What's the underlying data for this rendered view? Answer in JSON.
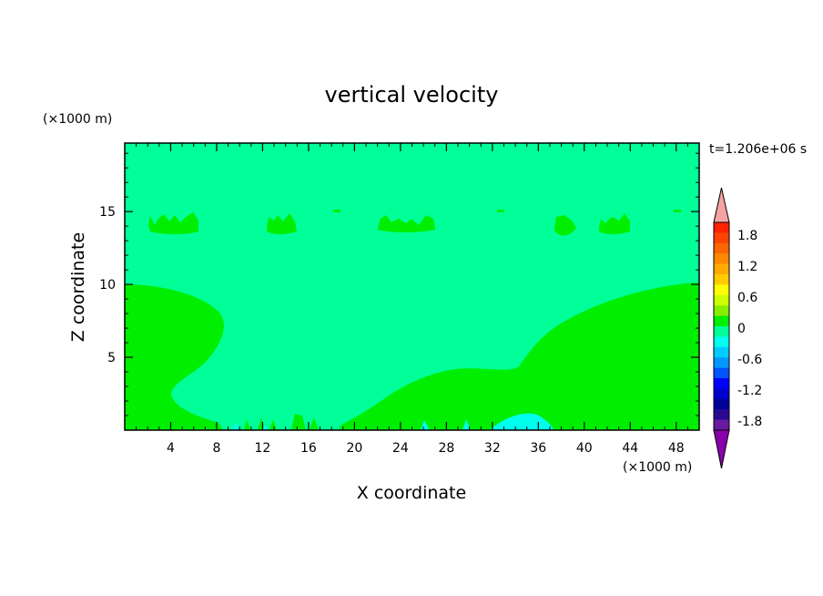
{
  "chart_data": {
    "type": "heatmap",
    "title": "vertical velocity",
    "xlabel": "X coordinate",
    "ylabel": "Z coordinate",
    "x_unit": "(×1000 m)",
    "y_unit": "(×1000 m)",
    "time_label": "t=1.206e+06 s",
    "xlim": [
      0,
      50
    ],
    "ylim": [
      0,
      19.7
    ],
    "x_ticks": [
      4,
      8,
      12,
      16,
      20,
      24,
      28,
      32,
      36,
      40,
      44,
      48
    ],
    "y_ticks": [
      5,
      10,
      15
    ],
    "background_level": "-0.3..0 (green-cyan)",
    "colorbar": {
      "ticks": [
        "1.8",
        "1.2",
        "0.6",
        "0",
        "-0.6",
        "-1.2",
        "-1.8"
      ],
      "levels": [
        {
          "color": "#f4a3a3"
        },
        {
          "color": "#ff2200"
        },
        {
          "color": "#ff4400"
        },
        {
          "color": "#ff6600"
        },
        {
          "color": "#ff8800"
        },
        {
          "color": "#ffaa00"
        },
        {
          "color": "#ffcc00"
        },
        {
          "color": "#ffff00"
        },
        {
          "color": "#ccff00"
        },
        {
          "color": "#88ee00"
        },
        {
          "color": "#00ee00"
        },
        {
          "color": "#00ff99"
        },
        {
          "color": "#00ffee"
        },
        {
          "color": "#00ccff"
        },
        {
          "color": "#0099ff"
        },
        {
          "color": "#0055ff"
        },
        {
          "color": "#0000ff"
        },
        {
          "color": "#0000cc"
        },
        {
          "color": "#000099"
        },
        {
          "color": "#2a0a90"
        },
        {
          "color": "#6a1aa0"
        },
        {
          "color": "#8800aa"
        }
      ]
    },
    "colors": {
      "field_background": "#00ff99",
      "field_positive": "#00ee00",
      "field_negative": "#00ffee"
    },
    "regions": [
      {
        "name": "low-left-updraft",
        "x_range": [
          0,
          11
        ],
        "z_range": [
          0,
          10.1
        ]
      },
      {
        "name": "low-right-updraft",
        "x_range": [
          23,
          50
        ],
        "z_range": [
          0,
          10.3
        ]
      },
      {
        "name": "upper-cells-near-15km",
        "x_centers": [
          5,
          14,
          24,
          38.5,
          43
        ],
        "z_range": [
          13.8,
          15.2
        ]
      }
    ]
  }
}
